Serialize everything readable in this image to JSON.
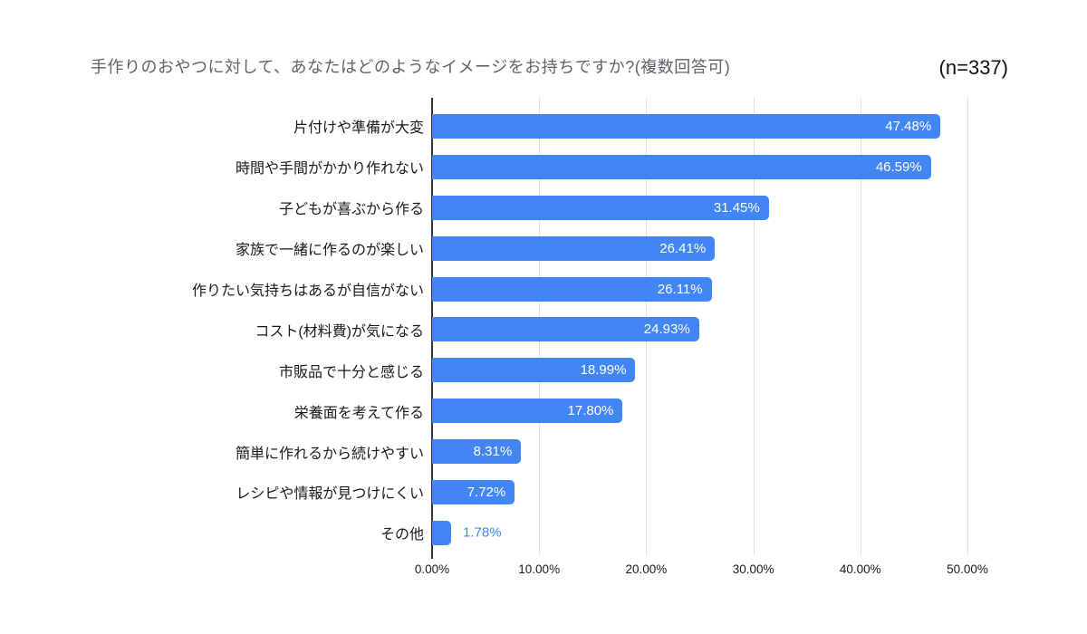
{
  "chart_data": {
    "type": "bar",
    "orientation": "horizontal",
    "title": "手作りのおやつに対して、あなたはどのようなイメージをお持ちですか?(複数回答可)",
    "sample_note": "(n=337)",
    "categories": [
      "片付けや準備が大変",
      "時間や手間がかかり作れない",
      "子どもが喜ぶから作る",
      "家族で一緒に作るのが楽しい",
      "作りたい気持ちはあるが自信がない",
      "コスト(材料費)が気になる",
      "市販品で十分と感じる",
      "栄養面を考えて作る",
      "簡単に作れるから続けやすい",
      "レシピや情報が見つけにくい",
      "その他"
    ],
    "values": [
      47.48,
      46.59,
      31.45,
      26.41,
      26.11,
      24.93,
      18.99,
      17.8,
      8.31,
      7.72,
      1.78
    ],
    "value_labels": [
      "47.48%",
      "46.59%",
      "31.45%",
      "26.41%",
      "26.11%",
      "24.93%",
      "18.99%",
      "17.80%",
      "8.31%",
      "7.72%",
      "1.78%"
    ],
    "x_ticks": [
      "0.00%",
      "10.00%",
      "20.00%",
      "30.00%",
      "40.00%",
      "50.00%"
    ],
    "xlim": [
      0,
      50
    ],
    "grid": true,
    "legend": "none",
    "colors": {
      "bar": "#4285f4",
      "value_label_inside": "#ffffff",
      "value_label_outside": "#4285f4",
      "gridline": "#e0e0e0",
      "axis_line": "#333333",
      "title_text": "#5f6368",
      "category_text": "#1a1a1a",
      "tick_text": "#1a1a1a",
      "background": "#ffffff"
    }
  }
}
